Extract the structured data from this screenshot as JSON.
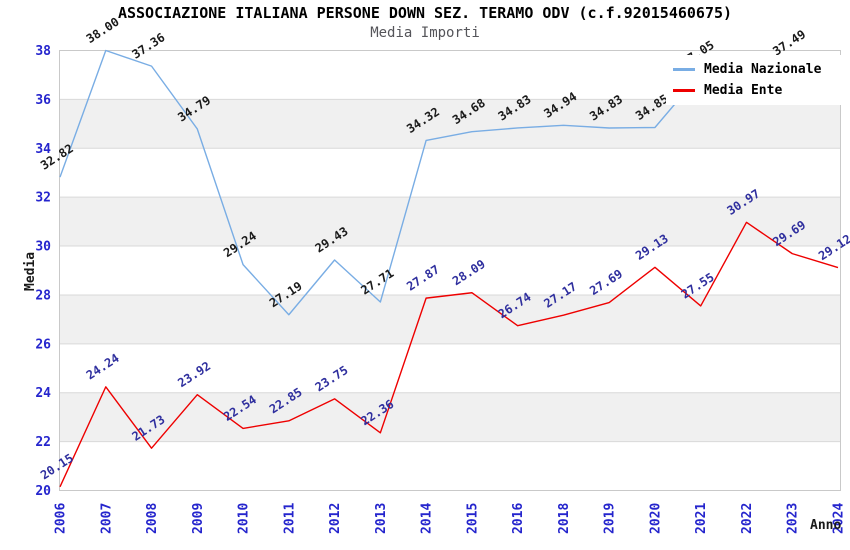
{
  "chart_data": {
    "type": "line",
    "title": "ASSOCIAZIONE ITALIANA PERSONE DOWN SEZ. TERAMO ODV (c.f.92015460675)",
    "subtitle": "Media Importi",
    "xlabel": "Anno",
    "ylabel": "Media",
    "ylim": [
      20,
      38
    ],
    "y_ticks": [
      20,
      22,
      24,
      26,
      28,
      30,
      32,
      34,
      36,
      38
    ],
    "grid": "horizontal-gridlines-with-alternating-bands",
    "legend_position": "top-right",
    "categories": [
      "2006",
      "2007",
      "2008",
      "2009",
      "2010",
      "2011",
      "2012",
      "2013",
      "2014",
      "2015",
      "2016",
      "2018",
      "2019",
      "2020",
      "2021",
      "2022",
      "2023",
      "2024"
    ],
    "series": [
      {
        "name": "Media Nazionale",
        "color": "#79ade4",
        "label_color": "#1a1a1a",
        "values": [
          32.82,
          38.0,
          37.36,
          34.79,
          29.24,
          27.19,
          29.43,
          27.71,
          34.32,
          34.68,
          34.83,
          34.94,
          34.83,
          34.85,
          37.05,
          null,
          37.49,
          null
        ]
      },
      {
        "name": "Media Ente",
        "color": "#ee0000",
        "label_color": "#2f2f9e",
        "values": [
          20.15,
          24.24,
          21.73,
          23.92,
          22.54,
          22.85,
          23.75,
          22.36,
          27.87,
          28.09,
          26.74,
          27.17,
          27.69,
          29.13,
          27.55,
          30.97,
          29.69,
          29.12
        ]
      }
    ],
    "colors": {
      "tick_label": "#2525cd",
      "band_fill": "#f0f0f0",
      "gridline": "#d9d9d9",
      "plot_border": "#c9c9c9",
      "axis_title": "#1a1a1a",
      "subtitle": "#55555a"
    }
  }
}
